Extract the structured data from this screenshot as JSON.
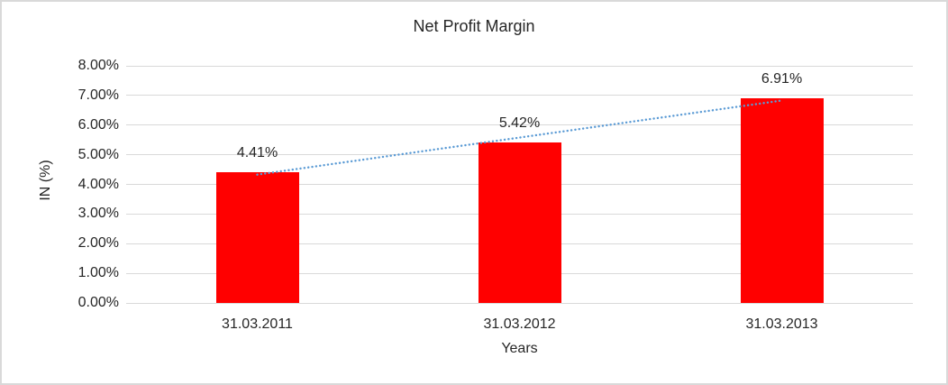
{
  "chart_data": {
    "type": "bar",
    "title": "Net Profit Margin",
    "xlabel": "Years",
    "ylabel": "IN (%)",
    "categories": [
      "31.03.2011",
      "31.03.2012",
      "31.03.2013"
    ],
    "values": [
      4.41,
      5.42,
      6.91
    ],
    "value_labels": [
      "4.41%",
      "5.42%",
      "6.91%"
    ],
    "ylim": [
      0,
      8
    ],
    "ytick_step": 1,
    "ytick_labels": [
      "0.00%",
      "1.00%",
      "2.00%",
      "3.00%",
      "4.00%",
      "5.00%",
      "6.00%",
      "7.00%",
      "8.00%"
    ],
    "grid": true,
    "legend": "none",
    "bar_color": "#ff0000",
    "gridline_color": "#d9d9d9",
    "border_color": "#d9d9d9",
    "text_color": "#262626",
    "trendline": {
      "type": "linear",
      "style": "dotted",
      "color": "#5b9bd5"
    }
  }
}
